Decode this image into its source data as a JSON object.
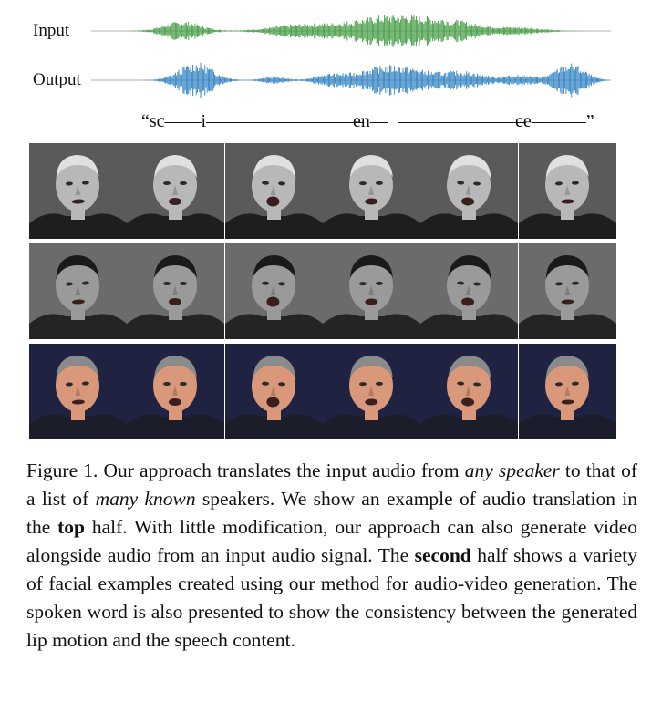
{
  "waveforms": {
    "input_label": "Input",
    "output_label": "Output",
    "input_color": "#3f9a3f",
    "output_color": "#2b7fc1",
    "axis_color": "#999999"
  },
  "spoken_word": {
    "open": "“sc——i——",
    "dash1": "———————",
    "mid": "en—",
    "dash2": "———————",
    "end": "ce———”"
  },
  "face_rows": [
    {
      "subject": "elderly man, grayscale",
      "tone": "#b8b8b8",
      "bg": "#5a5a5a",
      "suit": "#1e1e1e",
      "hair": "#e0e0e0"
    },
    {
      "subject": "young man, grayscale",
      "tone": "#9a9a9a",
      "bg": "#6b6b6b",
      "suit": "#242424",
      "hair": "#1a1a1a"
    },
    {
      "subject": "man in suit, color",
      "tone": "#d9987a",
      "bg": "#1f2240",
      "suit": "#1b1e2a",
      "hair": "#8a8a8a"
    }
  ],
  "caption": {
    "fig": "Figure 1.",
    "t1": " Our approach translates the input audio from ",
    "em1": "any speaker",
    "t2": " to that of a list of ",
    "em2": "many known",
    "t3": " speakers. We show an example of audio translation in the ",
    "b1": "top",
    "t4": " half. With little modification, our approach can also generate video alongside audio from an input audio signal. The ",
    "b2": "second",
    "t5": " half shows a variety of facial examples created using our method for audio-video generation. The spoken word is also presented to show the consistency between the generated lip motion and the speech content."
  }
}
